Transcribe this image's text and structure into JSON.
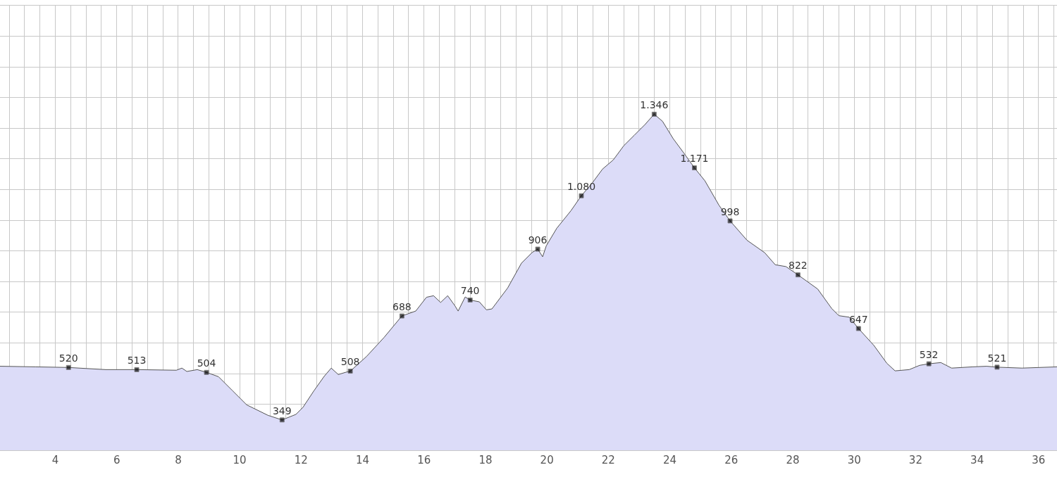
{
  "chart_data": {
    "type": "area",
    "x": [
      2.2,
      3.35,
      4.43,
      5.64,
      6.65,
      7.94,
      8.12,
      8.28,
      8.62,
      8.92,
      9.31,
      9.77,
      10.23,
      10.92,
      11.38,
      11.83,
      12.06,
      12.41,
      12.75,
      12.98,
      13.21,
      13.44,
      13.6,
      14.13,
      14.7,
      15.28,
      15.73,
      16.08,
      16.31,
      16.54,
      16.77,
      17.0,
      17.11,
      17.34,
      17.5,
      17.8,
      18.03,
      18.21,
      18.72,
      19.17,
      19.52,
      19.7,
      19.86,
      19.98,
      20.32,
      20.78,
      21.12,
      21.47,
      21.81,
      22.16,
      22.5,
      22.84,
      23.19,
      23.49,
      23.76,
      24.11,
      24.45,
      24.8,
      25.14,
      25.6,
      25.96,
      26.51,
      27.09,
      27.43,
      27.78,
      28.17,
      28.81,
      29.27,
      29.5,
      29.84,
      30.14,
      30.64,
      31.06,
      31.33,
      31.79,
      32.13,
      32.43,
      32.82,
      33.17,
      33.85,
      34.31,
      34.65,
      35.46,
      36.6
    ],
    "series": [
      {
        "color": "#dcdcf8",
        "values": [
          524,
          522,
          520,
          513,
          513,
          511,
          518,
          507,
          513,
          504,
          490,
          444,
          398,
          364,
          349,
          367,
          390,
          443,
          491,
          518,
          497,
          504,
          508,
          556,
          618,
          688,
          704,
          749,
          754,
          732,
          754,
          722,
          704,
          750,
          740,
          734,
          708,
          711,
          779,
          860,
          895,
          906,
          881,
          917,
          974,
          1031,
          1080,
          1121,
          1167,
          1197,
          1243,
          1277,
          1312,
          1346,
          1323,
          1266,
          1220,
          1171,
          1129,
          1049,
          998,
          935,
          894,
          855,
          849,
          822,
          776,
          712,
          689,
          684,
          647,
          592,
          534,
          509,
          513,
          527,
          532,
          536,
          518,
          522,
          524,
          521,
          518,
          522
        ],
        "value_labels": [
          null,
          null,
          "520",
          null,
          "513",
          null,
          null,
          null,
          null,
          "504",
          null,
          null,
          null,
          null,
          "349",
          null,
          null,
          null,
          null,
          null,
          null,
          null,
          "508",
          null,
          null,
          "688",
          null,
          null,
          null,
          null,
          null,
          null,
          null,
          null,
          "740",
          null,
          null,
          null,
          null,
          null,
          null,
          "906",
          null,
          null,
          null,
          null,
          "1.080",
          null,
          null,
          null,
          null,
          null,
          null,
          "1.346",
          null,
          null,
          null,
          "1.171",
          null,
          null,
          "998",
          null,
          null,
          null,
          null,
          "822",
          null,
          null,
          null,
          null,
          "647",
          null,
          null,
          null,
          null,
          null,
          "532",
          null,
          null,
          null,
          null,
          "521",
          null,
          null
        ]
      }
    ],
    "xlim": [
      2.2,
      36.6
    ],
    "xticks": [
      {
        "value": 2.5,
        "label": null
      },
      {
        "value": 3,
        "label": null
      },
      {
        "value": 3.5,
        "label": null
      },
      4,
      {
        "value": 4.5,
        "label": null
      },
      {
        "value": 5,
        "label": null
      },
      {
        "value": 5.5,
        "label": null
      },
      6,
      {
        "value": 6.5,
        "label": null
      },
      {
        "value": 7,
        "label": null
      },
      {
        "value": 7.5,
        "label": null
      },
      8,
      {
        "value": 8.5,
        "label": null
      },
      {
        "value": 9,
        "label": null
      },
      {
        "value": 9.5,
        "label": null
      },
      10,
      {
        "value": 10.5,
        "label": null
      },
      {
        "value": 11,
        "label": null
      },
      {
        "value": 11.5,
        "label": null
      },
      12,
      {
        "value": 12.5,
        "label": null
      },
      {
        "value": 13,
        "label": null
      },
      {
        "value": 13.5,
        "label": null
      },
      14,
      {
        "value": 14.5,
        "label": null
      },
      {
        "value": 15,
        "label": null
      },
      {
        "value": 15.5,
        "label": null
      },
      16,
      {
        "value": 16.5,
        "label": null
      },
      {
        "value": 17,
        "label": null
      },
      {
        "value": 17.5,
        "label": null
      },
      18,
      {
        "value": 18.5,
        "label": null
      },
      {
        "value": 19,
        "label": null
      },
      {
        "value": 19.5,
        "label": null
      },
      20,
      {
        "value": 20.5,
        "label": null
      },
      {
        "value": 21,
        "label": null
      },
      {
        "value": 21.5,
        "label": null
      },
      22,
      {
        "value": 22.5,
        "label": null
      },
      {
        "value": 23,
        "label": null
      },
      {
        "value": 23.5,
        "label": null
      },
      24,
      {
        "value": 24.5,
        "label": null
      },
      {
        "value": 25,
        "label": null
      },
      {
        "value": 25.5,
        "label": null
      },
      26,
      {
        "value": 26.5,
        "label": null
      },
      {
        "value": 27,
        "label": null
      },
      {
        "value": 27.5,
        "label": null
      },
      28,
      {
        "value": 28.5,
        "label": null
      },
      {
        "value": 29,
        "label": null
      },
      {
        "value": 29.5,
        "label": null
      },
      30,
      {
        "value": 30.5,
        "label": null
      },
      {
        "value": 31,
        "label": null
      },
      {
        "value": 31.5,
        "label": null
      },
      32,
      {
        "value": 32.5,
        "label": null
      },
      {
        "value": 33,
        "label": null
      },
      {
        "value": 33.5,
        "label": null
      },
      34,
      {
        "value": 34.5,
        "label": null
      },
      {
        "value": 35,
        "label": null
      },
      {
        "value": 35.5,
        "label": null
      },
      36,
      {
        "value": 36.5,
        "label": null
      }
    ],
    "ylim": [
      250,
      1700
    ],
    "yticks": [
      {
        "value": 400,
        "label": null
      },
      {
        "value": 500,
        "label": null
      },
      {
        "value": 600,
        "label": null
      },
      {
        "value": 700,
        "label": null
      },
      {
        "value": 800,
        "label": null
      },
      {
        "value": 900,
        "label": null
      },
      {
        "value": 1000,
        "label": null
      },
      {
        "value": 1100,
        "label": null
      },
      {
        "value": 1200,
        "label": null
      },
      {
        "value": 1300,
        "label": null
      },
      {
        "value": 1400,
        "label": null
      },
      {
        "value": 1500,
        "label": null
      },
      {
        "value": 1600,
        "label": null
      }
    ],
    "tick_labels": "x",
    "grid": true,
    "line_style": "solid"
  }
}
